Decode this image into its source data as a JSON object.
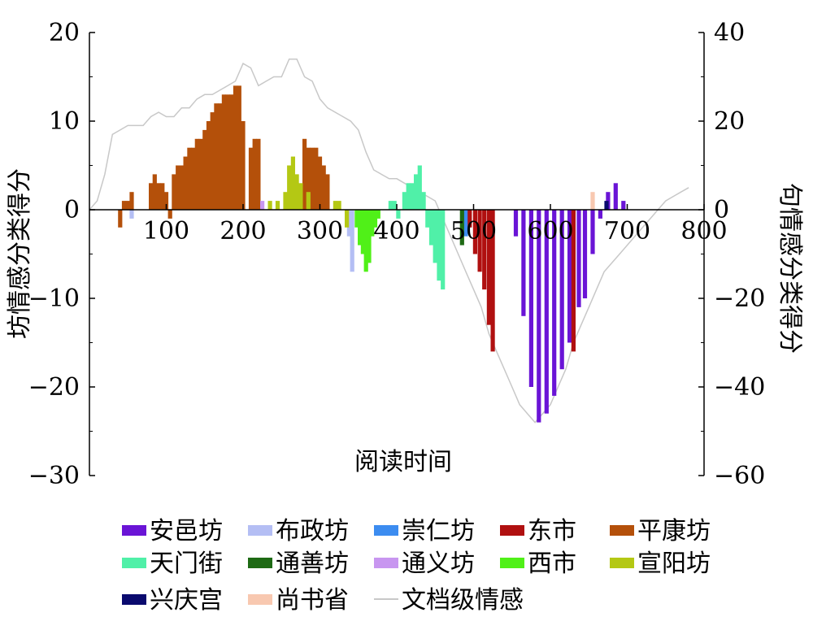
{
  "chart_data": {
    "type": "bar",
    "title": "",
    "xlabel": "阅读时间",
    "ylabel_left": "坊情感分类得分",
    "ylabel_right": "句情感分类得分",
    "xlim": [
      0,
      800
    ],
    "ylim_left": [
      -30,
      20
    ],
    "ylim_right": [
      -60,
      40
    ],
    "x_ticks": [
      100,
      200,
      300,
      400,
      500,
      600,
      700,
      800
    ],
    "y_ticks_left": [
      20,
      10,
      0,
      -10,
      -20,
      -30
    ],
    "y_ticks_right": [
      40,
      20,
      0,
      -20,
      -40,
      -60
    ],
    "grid": false,
    "legend_position": "bottom",
    "bar_series": [
      {
        "name": "安邑坊",
        "color": "#6a14d6",
        "axis": "left",
        "x": [
          555,
          565,
          575,
          585,
          595,
          605,
          615,
          625,
          637,
          645,
          655,
          665,
          675,
          685,
          695
        ],
        "values": [
          -3,
          -12,
          -20,
          -24,
          -23,
          -21,
          -18,
          -15,
          -11,
          -10,
          -5,
          -1,
          2,
          3,
          1
        ]
      },
      {
        "name": "布政坊",
        "color": "#b4bef4",
        "axis": "left",
        "x": [
          55,
          338,
          342
        ],
        "values": [
          -1,
          -3,
          -7
        ]
      },
      {
        "name": "崇仁坊",
        "color": "#3c8cf0",
        "axis": "left",
        "x": [
          486,
          490
        ],
        "values": [
          -2,
          -3
        ]
      },
      {
        "name": "东市",
        "color": "#b01010",
        "axis": "left",
        "x": [
          495,
          502,
          508,
          514,
          520,
          525,
          630
        ],
        "values": [
          -2,
          -5,
          -7,
          -9,
          -13,
          -16,
          -16
        ]
      },
      {
        "name": "平康坊",
        "color": "#b4500a",
        "axis": "left",
        "x": [
          40,
          45,
          50,
          55,
          80,
          85,
          90,
          95,
          100,
          105,
          110,
          115,
          120,
          125,
          130,
          135,
          140,
          145,
          150,
          155,
          160,
          165,
          170,
          175,
          180,
          185,
          190,
          195,
          200,
          210,
          215,
          220,
          280,
          285,
          290,
          295,
          300,
          305,
          310
        ],
        "values": [
          -2,
          1,
          1,
          2,
          3,
          4,
          3,
          3,
          2,
          -1,
          4,
          5,
          5,
          6,
          7,
          7,
          8,
          8,
          9,
          10,
          11,
          12,
          12,
          13,
          13,
          13,
          14,
          14,
          10,
          7,
          8,
          8,
          8,
          7,
          7,
          7,
          6,
          5,
          4
        ]
      },
      {
        "name": "天门街",
        "color": "#50f0a8",
        "axis": "left",
        "x": [
          392,
          397,
          402,
          410,
          415,
          420,
          425,
          430,
          435,
          440,
          445,
          450,
          455,
          460
        ],
        "values": [
          1,
          1,
          -1,
          2,
          3,
          3,
          4,
          5,
          2,
          -2,
          -4,
          -6,
          -8,
          -9
        ]
      },
      {
        "name": "通善坊",
        "color": "#1e6a14",
        "axis": "left",
        "x": [
          485
        ],
        "values": [
          -4
        ]
      },
      {
        "name": "通义坊",
        "color": "#c896f0",
        "axis": "left",
        "x": [
          225
        ],
        "values": [
          1
        ]
      },
      {
        "name": "西市",
        "color": "#50f018",
        "axis": "left",
        "x": [
          348,
          352,
          356,
          360,
          364,
          368,
          372,
          376
        ],
        "values": [
          -2,
          -4,
          -5,
          -7,
          -6,
          -3,
          -2,
          -1
        ]
      },
      {
        "name": "宣阳坊",
        "color": "#b4c814",
        "axis": "left",
        "x": [
          235,
          245,
          255,
          260,
          265,
          270,
          275,
          285,
          320,
          325,
          335
        ],
        "values": [
          1,
          1,
          2,
          5,
          6,
          4,
          3,
          2,
          1,
          1,
          -2
        ]
      },
      {
        "name": "兴庆宫",
        "color": "#0a0a6e",
        "axis": "left",
        "x": [
          673
        ],
        "values": [
          1
        ]
      },
      {
        "name": "尚书省",
        "color": "#f8c8b0",
        "axis": "left",
        "x": [
          655
        ],
        "values": [
          2
        ]
      }
    ],
    "line_series": [
      {
        "name": "文档级情感",
        "color": "#c8c8c8",
        "axis": "right",
        "x": [
          0,
          10,
          20,
          30,
          40,
          50,
          60,
          70,
          80,
          90,
          100,
          110,
          120,
          130,
          140,
          150,
          160,
          170,
          180,
          190,
          200,
          210,
          220,
          230,
          240,
          250,
          260,
          270,
          280,
          290,
          300,
          310,
          320,
          330,
          340,
          350,
          360,
          370,
          380,
          390,
          400,
          410,
          420,
          430,
          440,
          450,
          460,
          470,
          480,
          490,
          500,
          510,
          520,
          530,
          540,
          550,
          560,
          570,
          580,
          590,
          600,
          610,
          620,
          630,
          640,
          650,
          660,
          670,
          680,
          690,
          700,
          710,
          720,
          730,
          740,
          750,
          760,
          770,
          780
        ],
        "values": [
          0,
          2,
          8,
          17,
          18,
          19,
          19,
          19,
          21,
          22,
          21,
          21,
          23,
          23,
          25,
          26,
          26,
          27,
          28,
          29,
          33,
          32,
          28,
          29,
          30,
          30,
          34,
          34,
          30,
          29,
          25,
          23,
          22,
          21,
          20,
          18,
          13,
          9,
          8,
          7,
          7,
          6,
          5,
          4,
          3,
          2,
          -2,
          -6,
          -10,
          -14,
          -18,
          -22,
          -28,
          -32,
          -36,
          -40,
          -44,
          -46,
          -48,
          -46,
          -44,
          -40,
          -36,
          -30,
          -26,
          -22,
          -18,
          -14,
          -12,
          -10,
          -8,
          -6,
          -4,
          -2,
          0,
          2,
          3,
          4,
          5
        ]
      }
    ],
    "legend": [
      {
        "label": "安邑坊",
        "color": "#6a14d6",
        "kind": "box"
      },
      {
        "label": "布政坊",
        "color": "#b4bef4",
        "kind": "box"
      },
      {
        "label": "崇仁坊",
        "color": "#3c8cf0",
        "kind": "box"
      },
      {
        "label": "东市",
        "color": "#b01010",
        "kind": "box"
      },
      {
        "label": "平康坊",
        "color": "#b4500a",
        "kind": "box"
      },
      {
        "label": "天门街",
        "color": "#50f0a8",
        "kind": "box"
      },
      {
        "label": "通善坊",
        "color": "#1e6a14",
        "kind": "box"
      },
      {
        "label": "通义坊",
        "color": "#c896f0",
        "kind": "box"
      },
      {
        "label": "西市",
        "color": "#50f018",
        "kind": "box"
      },
      {
        "label": "宣阳坊",
        "color": "#b4c814",
        "kind": "box"
      },
      {
        "label": "兴庆宫",
        "color": "#0a0a6e",
        "kind": "box"
      },
      {
        "label": "尚书省",
        "color": "#f8c8b0",
        "kind": "box"
      },
      {
        "label": "文档级情感",
        "color": "#c8c8c8",
        "kind": "line"
      }
    ]
  }
}
